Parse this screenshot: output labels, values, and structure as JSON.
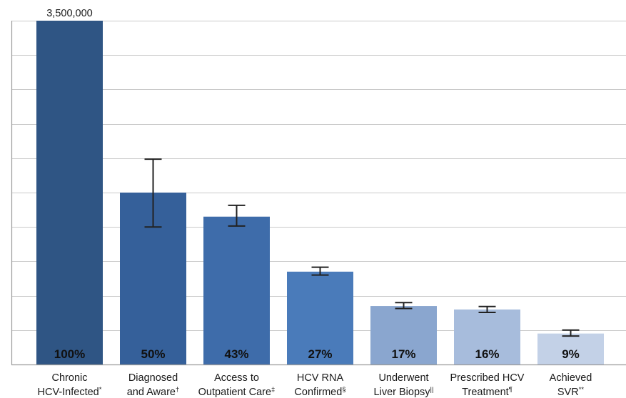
{
  "chart_data": {
    "type": "bar",
    "title": "",
    "xlabel": "",
    "ylabel": "",
    "ylim": [
      0,
      3500000
    ],
    "grid": true,
    "top_value_label": "3,500,000",
    "categories": [
      {
        "line1": "Chronic",
        "line2": "HCV-Infected",
        "mark": "*"
      },
      {
        "line1": "Diagnosed",
        "line2": "and Aware",
        "mark": "†"
      },
      {
        "line1": "Access to",
        "line2": "Outpatient Care",
        "mark": "‡"
      },
      {
        "line1": "HCV RNA",
        "line2": "Confirmed",
        "mark": "§"
      },
      {
        "line1": "Underwent",
        "line2": "Liver Biopsy",
        "mark": "||"
      },
      {
        "line1": "Prescribed HCV",
        "line2": "Treatment",
        "mark": "¶"
      },
      {
        "line1": "Achieved",
        "line2": "SVR",
        "mark": "**"
      }
    ],
    "series": [
      {
        "values": [
          3500000,
          1750000,
          1505000,
          945000,
          595000,
          560000,
          315000
        ],
        "percent_labels": [
          "100%",
          "50%",
          "43%",
          "27%",
          "17%",
          "16%",
          "9%"
        ],
        "error_low": [
          null,
          1400000,
          1410000,
          910000,
          570000,
          530000,
          290000
        ],
        "error_high": [
          null,
          2090000,
          1620000,
          990000,
          630000,
          590000,
          350000
        ]
      }
    ],
    "colors": [
      "#2f5584",
      "#35609a",
      "#3e6caa",
      "#4a7bba",
      "#8aa6cf",
      "#a7bcdc",
      "#c3d1e7"
    ]
  }
}
